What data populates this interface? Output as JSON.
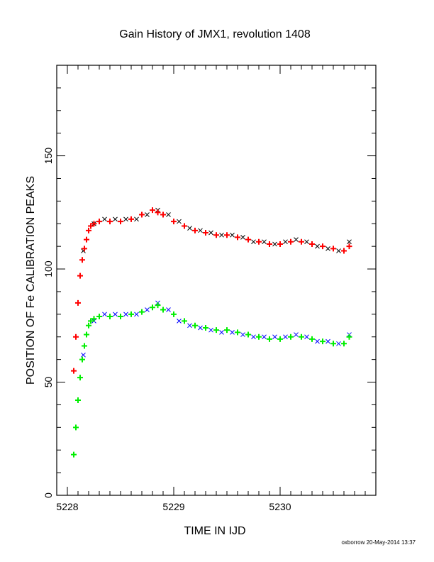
{
  "chart_data": {
    "type": "scatter",
    "title": "Gain History of JMX1, revolution 1408",
    "xlabel": "TIME IN IJD",
    "ylabel": "POSITION OF Fe CALIBRATION PEAKS",
    "xlim": [
      5227.9,
      5230.9
    ],
    "ylim": [
      0,
      190
    ],
    "xticks": [
      5228,
      5229,
      5230
    ],
    "xtick_labels": [
      "5228",
      "5229",
      "5230"
    ],
    "yticks": [
      0,
      50,
      100,
      150
    ],
    "ytick_labels": [
      "0",
      "50",
      "100",
      "150"
    ],
    "grid": false,
    "legend": "none",
    "series": [
      {
        "marker": "x",
        "color": "#000000",
        "x": [
          5228.15,
          5228.25,
          5228.35,
          5228.45,
          5228.55,
          5228.65,
          5228.75,
          5228.85,
          5228.95,
          5229.05,
          5229.15,
          5229.25,
          5229.35,
          5229.45,
          5229.55,
          5229.65,
          5229.75,
          5229.85,
          5229.95,
          5230.05,
          5230.15,
          5230.25,
          5230.35,
          5230.45,
          5230.55,
          5230.65
        ],
        "y": [
          108,
          120,
          122,
          122,
          122,
          122,
          124,
          126,
          124,
          121,
          118,
          117,
          116,
          115,
          115,
          114,
          112,
          112,
          111,
          112,
          113,
          112,
          110,
          109,
          108,
          112
        ]
      },
      {
        "marker": "+",
        "color": "#ff0000",
        "x": [
          5228.06,
          5228.08,
          5228.1,
          5228.12,
          5228.14,
          5228.16,
          5228.18,
          5228.2,
          5228.22,
          5228.25,
          5228.3,
          5228.4,
          5228.5,
          5228.6,
          5228.7,
          5228.8,
          5228.85,
          5228.9,
          5229.0,
          5229.1,
          5229.2,
          5229.3,
          5229.4,
          5229.5,
          5229.6,
          5229.7,
          5229.8,
          5229.9,
          5230.0,
          5230.1,
          5230.2,
          5230.3,
          5230.4,
          5230.5,
          5230.6,
          5230.65
        ],
        "y": [
          55,
          70,
          85,
          97,
          104,
          109,
          113,
          117,
          119,
          120,
          121,
          121,
          121,
          122,
          124,
          126,
          125,
          124,
          121,
          119,
          117,
          116,
          115,
          115,
          114,
          113,
          112,
          111,
          111,
          112,
          112,
          111,
          110,
          109,
          108,
          110
        ]
      },
      {
        "marker": "x",
        "color": "#0000ff",
        "x": [
          5228.15,
          5228.25,
          5228.35,
          5228.45,
          5228.55,
          5228.65,
          5228.75,
          5228.85,
          5228.95,
          5229.05,
          5229.15,
          5229.25,
          5229.35,
          5229.45,
          5229.55,
          5229.65,
          5229.75,
          5229.85,
          5229.95,
          5230.05,
          5230.15,
          5230.25,
          5230.35,
          5230.45,
          5230.55,
          5230.65
        ],
        "y": [
          62,
          77,
          80,
          80,
          80,
          80,
          82,
          85,
          82,
          77,
          75,
          74,
          73,
          72,
          72,
          71,
          70,
          70,
          70,
          70,
          71,
          70,
          68,
          68,
          67,
          71
        ]
      },
      {
        "marker": "+",
        "color": "#00ee00",
        "x": [
          5228.06,
          5228.08,
          5228.1,
          5228.12,
          5228.14,
          5228.16,
          5228.18,
          5228.2,
          5228.22,
          5228.25,
          5228.3,
          5228.4,
          5228.5,
          5228.6,
          5228.7,
          5228.8,
          5228.85,
          5228.9,
          5229.0,
          5229.1,
          5229.2,
          5229.3,
          5229.4,
          5229.5,
          5229.6,
          5229.7,
          5229.8,
          5229.9,
          5230.0,
          5230.1,
          5230.2,
          5230.3,
          5230.4,
          5230.5,
          5230.6,
          5230.65
        ],
        "y": [
          18,
          30,
          42,
          52,
          60,
          66,
          71,
          75,
          77,
          78,
          79,
          79,
          79,
          80,
          81,
          83,
          84,
          82,
          80,
          77,
          75,
          74,
          73,
          73,
          72,
          71,
          70,
          69,
          69,
          70,
          70,
          69,
          68,
          67,
          67,
          70
        ]
      }
    ],
    "footer": "oxborrow 20-May-2014 13:37"
  }
}
